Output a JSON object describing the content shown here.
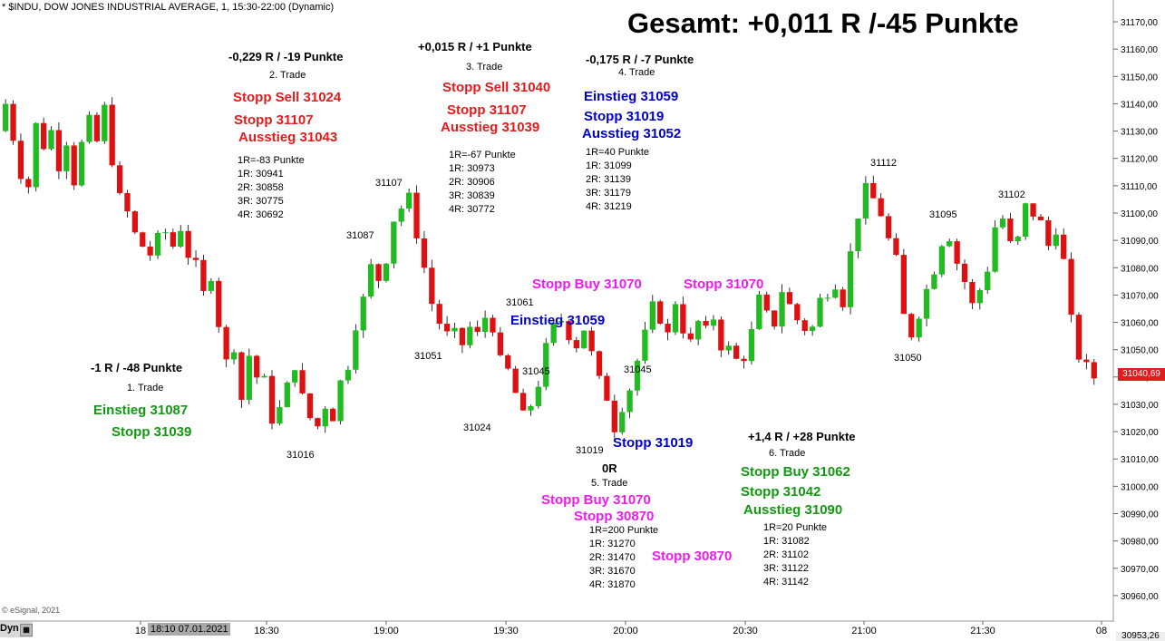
{
  "header": "* $INDU, DOW JONES INDUSTRIAL AVERAGE, 1, 15:30-22:00 (Dynamic)",
  "title": "Gesamt: +0,011 R /-45 Punkte",
  "copyright": "© eSignal, 2021",
  "dyn_label": "Dyn",
  "dyn_icon": "chart-icon",
  "date_box": "18:10 07.01.2021",
  "last_price": "31040,69",
  "bottom_price": "30953,26",
  "colors": {
    "up": "#22bb22",
    "down": "#dd1111",
    "red": "#e31b1b",
    "blue": "#0000cc",
    "green": "#119911",
    "magenta": "#ee1aee"
  },
  "chart_data": {
    "type": "candlestick",
    "x_ticks": [
      "18",
      "18:30",
      "19:00",
      "19:30",
      "20:00",
      "20:30",
      "21:00",
      "21:30",
      "08"
    ],
    "y_ticks": [
      "31170,00",
      "31160,00",
      "31150,00",
      "31140,00",
      "31130,00",
      "31120,00",
      "31110,00",
      "31100,00",
      "31090,00",
      "31080,00",
      "31070,00",
      "31060,00",
      "31050,00",
      "31040,00",
      "31030,00",
      "31020,00",
      "31010,00",
      "31000,00",
      "30990,00",
      "30980,00",
      "30970,00",
      "30960,00"
    ],
    "ylim": [
      30953,
      31172
    ],
    "close_path": [
      31130,
      31140,
      31128,
      31115,
      31110,
      31132,
      31125,
      31130,
      31118,
      31127,
      31112,
      31125,
      31133,
      31126,
      31138,
      31120,
      31105,
      31100,
      31092,
      31088,
      31085,
      31090,
      31093,
      31088,
      31095,
      31085,
      31080,
      31070,
      31078,
      31060,
      31045,
      31052,
      31032,
      31048,
      31040,
      31038,
      31025,
      31028,
      31036,
      31045,
      31032,
      31025,
      31022,
      31030,
      31026,
      31038,
      31045,
      31060,
      31068,
      31080,
      31076,
      31084,
      31098,
      31102,
      31105,
      31093,
      31080,
      31067,
      31060,
      31055,
      31055,
      31052,
      31058,
      31055,
      31062,
      31059,
      31045,
      31042,
      31034,
      31025,
      31030,
      31038,
      31050,
      31058,
      31061,
      31056,
      31052,
      31058,
      31048,
      31038,
      31033,
      31022,
      31030,
      31036,
      31046,
      31055,
      31065,
      31062,
      31055,
      31068,
      31058,
      31052,
      31060,
      31056,
      31062,
      31052,
      31050,
      31046,
      31048,
      31056,
      31068,
      31062,
      31060,
      31072,
      31066,
      31061,
      31058,
      31058,
      31068,
      31072,
      31075,
      31068,
      31085,
      31100,
      31108,
      31105,
      31100,
      31090,
      31082,
      31062,
      31056,
      31064,
      31072,
      31080,
      31090,
      31092,
      31082,
      31075,
      31066,
      31072,
      31080,
      31095,
      31098,
      31088,
      31090,
      31102,
      31100,
      31096,
      31088,
      31095,
      31082,
      31060,
      31048,
      31043,
      31040
    ]
  },
  "annotations": {
    "trade1": {
      "result": "-1 R / -48 Punkte",
      "name": "1. Trade",
      "entry": "Einstieg 31087",
      "stop": "Stopp 31039"
    },
    "trade2": {
      "result": "-0,229 R / -19 Punkte",
      "name": "2. Trade",
      "stop_sell": "Stopp Sell 31024",
      "stop": "Stopp 31107",
      "exit": "Ausstieg 31043",
      "levels": [
        "1R=-83 Punkte",
        "1R: 30941",
        "2R: 30858",
        "3R: 30775",
        "4R: 30692"
      ]
    },
    "trade3": {
      "result": "+0,015 R / +1 Punkte",
      "name": "3. Trade",
      "stop_sell": "Stopp Sell 31040",
      "stop": "Stopp 31107",
      "exit": "Ausstieg 31039",
      "levels": [
        "1R=-67 Punkte",
        "1R: 30973",
        "2R: 30906",
        "3R: 30839",
        "4R: 30772"
      ]
    },
    "trade4": {
      "result": "-0,175 R / -7 Punkte",
      "name": "4. Trade",
      "entry": "Einstieg 31059",
      "stop": "Stopp 31019",
      "exit": "Ausstieg 31052",
      "levels": [
        "1R=40 Punkte",
        "1R: 31099",
        "2R: 31139",
        "3R: 31179",
        "4R: 31219"
      ]
    },
    "trade5": {
      "result": "0R",
      "name": "5. Trade",
      "stop_buy": "Stopp Buy 31070",
      "stop": "Stopp 30870",
      "levels": [
        "1R=200 Punkte",
        "1R: 31270",
        "2R: 31470",
        "3R: 31670",
        "4R: 31870"
      ],
      "stop_chart": "Stopp 30870"
    },
    "trade6": {
      "result": "+1,4 R / +28 Punkte",
      "name": "6. Trade",
      "stop_buy": "Stopp Buy 31062",
      "stop": "Stopp 31042",
      "exit": "Ausstieg 31090",
      "levels": [
        "1R=20 Punkte",
        "1R: 31082",
        "2R: 31102",
        "3R: 31122",
        "4R: 31142"
      ]
    },
    "mid": {
      "stop_buy": "Stopp Buy 31070",
      "stop_right": "Stopp 31070",
      "entry": "Einstieg 31059",
      "stop_blue": "Stopp 31019"
    },
    "price_labels": [
      "31016",
      "31087",
      "31107",
      "31051",
      "31024",
      "31061",
      "31045",
      "31019",
      "31045",
      "31112",
      "31095",
      "31102",
      "31050"
    ]
  }
}
